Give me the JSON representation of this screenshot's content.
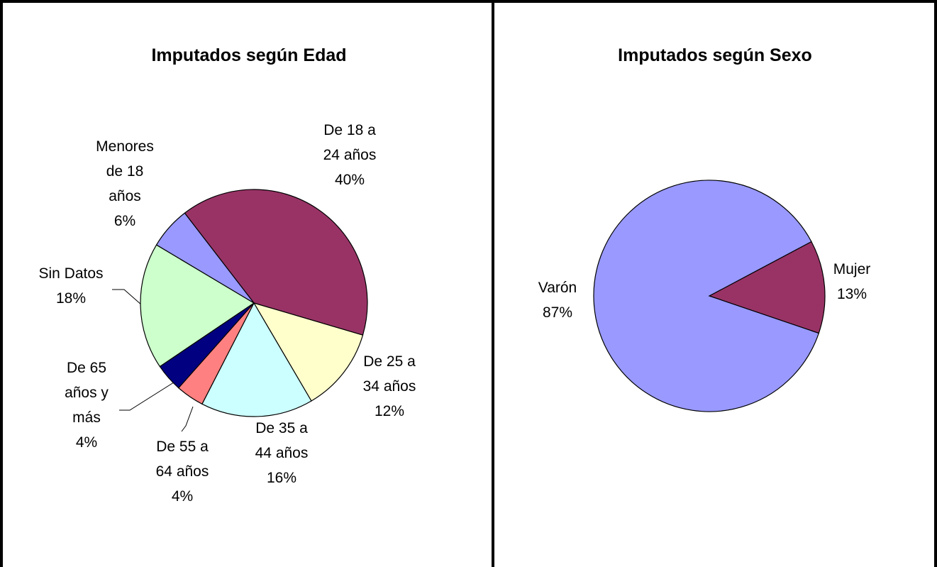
{
  "chart_data": [
    {
      "type": "pie",
      "title": "Imputados según Edad",
      "categories": [
        "De 18 a 24 años",
        "De 25 a 34 años",
        "De 35 a 44 años",
        "De 55 a 64 años",
        "De 65 años y más",
        "Sin Datos",
        "Menores de 18 años"
      ],
      "values": [
        40,
        12,
        16,
        4,
        4,
        18,
        6
      ],
      "value_labels": [
        "40%",
        "12%",
        "16%",
        "4%",
        "4%",
        "18%",
        "6%"
      ],
      "colors": [
        "#993366",
        "#FFFFCC",
        "#CCFFFF",
        "#FF8080",
        "#000080",
        "#CCFFCC",
        "#9999FF"
      ]
    },
    {
      "type": "pie",
      "title": "Imputados según Sexo",
      "categories": [
        "Mujer",
        "Varón"
      ],
      "values": [
        13,
        87
      ],
      "value_labels": [
        "13%",
        "87%"
      ],
      "colors": [
        "#993366",
        "#9999FF"
      ]
    }
  ]
}
